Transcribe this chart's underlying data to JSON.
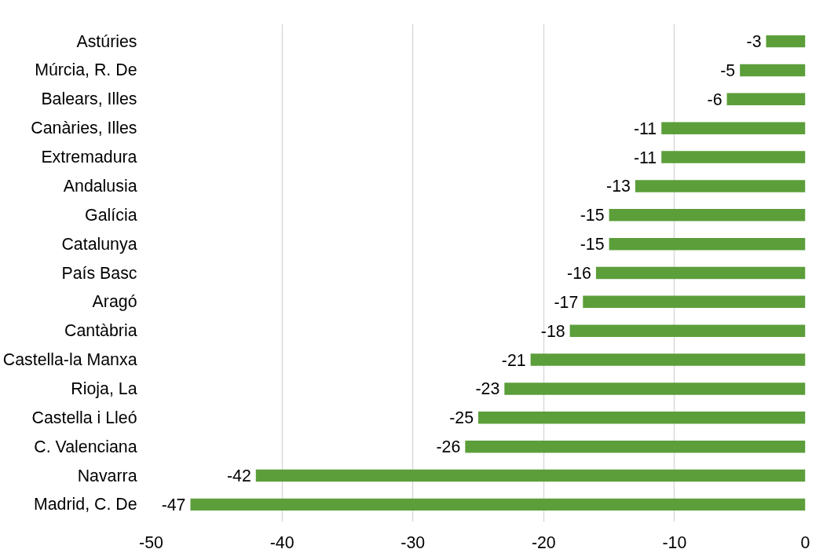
{
  "chart_data": {
    "type": "bar",
    "orientation": "horizontal",
    "categories": [
      "Astúries",
      "Múrcia, R. De",
      "Balears, Illes",
      "Canàries, Illes",
      "Extremadura",
      "Andalusia",
      "Galícia",
      "Catalunya",
      "País Basc",
      "Aragó",
      "Cantàbria",
      "Castella-la Manxa",
      "Rioja, La",
      "Castella i Lleó",
      "C. Valenciana",
      "Navarra",
      "Madrid, C. De"
    ],
    "values": [
      -3,
      -5,
      -6,
      -11,
      -11,
      -13,
      -15,
      -15,
      -16,
      -17,
      -18,
      -21,
      -23,
      -25,
      -26,
      -42,
      -47
    ],
    "color": "#5b9e3a",
    "data_labels": true,
    "xlim": [
      -50,
      0
    ],
    "xticks": [
      -50,
      -40,
      -30,
      -20,
      -10,
      0
    ],
    "grid": "x"
  }
}
